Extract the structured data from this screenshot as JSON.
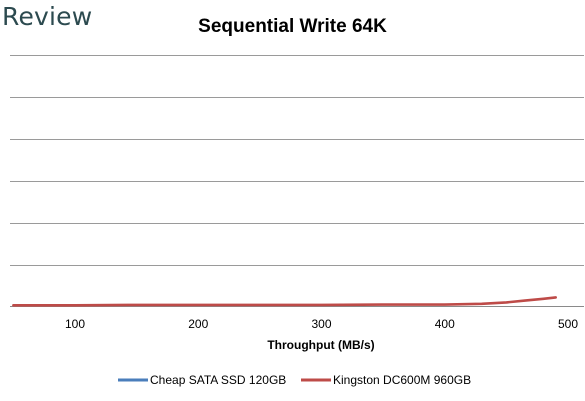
{
  "branding": {
    "logo_text": "Review"
  },
  "chart_data": {
    "type": "line",
    "title": "Sequential Write 64K",
    "xlabel": "Throughput (MB/s)",
    "ylabel": "",
    "xlim": [
      50,
      500
    ],
    "ylim": [
      0,
      7
    ],
    "x_ticks": [
      100,
      200,
      300,
      400,
      500
    ],
    "grid": true,
    "legend_position": "bottom",
    "series": [
      {
        "name": "Cheap SATA SSD 120GB",
        "color": "#4a7ebb",
        "x": [],
        "y": []
      },
      {
        "name": "Kingston DC600M 960GB",
        "color": "#be4b48",
        "x": [
          50,
          100,
          150,
          200,
          250,
          300,
          350,
          400,
          430,
          450,
          465,
          480,
          490
        ],
        "y": [
          0.02,
          0.02,
          0.03,
          0.03,
          0.03,
          0.03,
          0.04,
          0.04,
          0.06,
          0.1,
          0.15,
          0.2,
          0.24
        ]
      }
    ]
  }
}
